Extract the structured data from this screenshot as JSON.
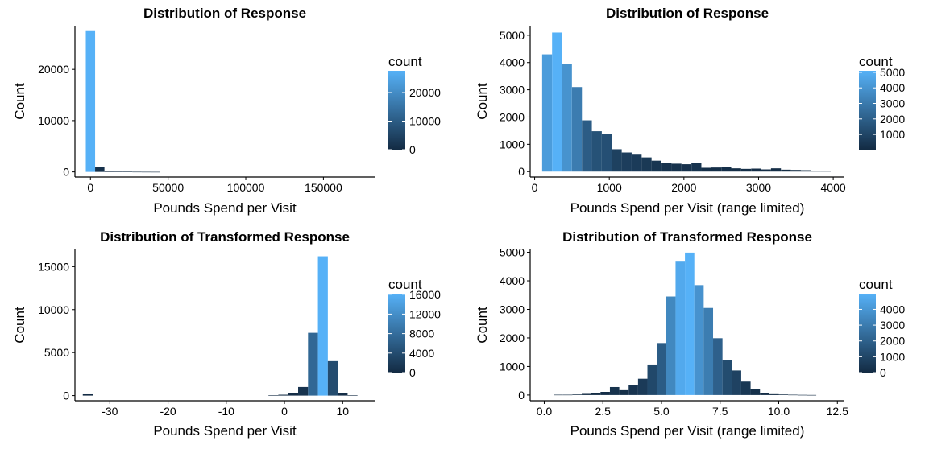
{
  "chart_data": [
    {
      "type": "bar",
      "title": "Distribution of Response",
      "xlabel": "Pounds Spend per Visit",
      "ylabel": "Count",
      "xlim": [
        -10000,
        183000
      ],
      "ylim": [
        -1000,
        28500
      ],
      "xticks": [
        0,
        50000,
        100000,
        150000
      ],
      "xtick_labels": [
        "0",
        "50000",
        "100000",
        "150000"
      ],
      "yticks": [
        0,
        10000,
        20000
      ],
      "ytick_labels": [
        "0",
        "10000",
        "20000"
      ],
      "bin_width": 6000,
      "bins": [
        {
          "x": 0,
          "count": 27600
        },
        {
          "x": 6000,
          "count": 1000
        },
        {
          "x": 12000,
          "count": 220
        },
        {
          "x": 18000,
          "count": 90
        },
        {
          "x": 24000,
          "count": 40
        },
        {
          "x": 30000,
          "count": 20
        },
        {
          "x": 36000,
          "count": 10
        },
        {
          "x": 42000,
          "count": 5
        }
      ],
      "legend": {
        "title": "count",
        "position": "right",
        "min": 0,
        "max": 27600,
        "ticks": [
          0,
          10000,
          20000
        ],
        "tick_labels": [
          "0",
          "10000",
          "20000"
        ]
      }
    },
    {
      "type": "bar",
      "title": "Distribution of Response",
      "xlabel": "Pounds Spend per Visit (range limited)",
      "ylabel": "Count",
      "xlim": [
        -60,
        4150
      ],
      "ylim": [
        -200,
        5350
      ],
      "xticks": [
        0,
        1000,
        2000,
        3000,
        4000
      ],
      "xtick_labels": [
        "0",
        "1000",
        "2000",
        "3000",
        "4000"
      ],
      "yticks": [
        0,
        1000,
        2000,
        3000,
        4000,
        5000
      ],
      "ytick_labels": [
        "0",
        "1000",
        "2000",
        "3000",
        "4000",
        "5000"
      ],
      "bin_width": 133,
      "bins": [
        {
          "x": 167,
          "count": 4300
        },
        {
          "x": 300,
          "count": 5100
        },
        {
          "x": 433,
          "count": 3950
        },
        {
          "x": 567,
          "count": 3100
        },
        {
          "x": 700,
          "count": 1880
        },
        {
          "x": 833,
          "count": 1480
        },
        {
          "x": 967,
          "count": 1380
        },
        {
          "x": 1100,
          "count": 820
        },
        {
          "x": 1233,
          "count": 700
        },
        {
          "x": 1367,
          "count": 620
        },
        {
          "x": 1500,
          "count": 520
        },
        {
          "x": 1633,
          "count": 400
        },
        {
          "x": 1767,
          "count": 320
        },
        {
          "x": 1900,
          "count": 290
        },
        {
          "x": 2033,
          "count": 270
        },
        {
          "x": 2167,
          "count": 330
        },
        {
          "x": 2300,
          "count": 140
        },
        {
          "x": 2433,
          "count": 150
        },
        {
          "x": 2567,
          "count": 170
        },
        {
          "x": 2700,
          "count": 120
        },
        {
          "x": 2833,
          "count": 100
        },
        {
          "x": 2967,
          "count": 110
        },
        {
          "x": 3100,
          "count": 80
        },
        {
          "x": 3233,
          "count": 120
        },
        {
          "x": 3367,
          "count": 70
        },
        {
          "x": 3500,
          "count": 60
        },
        {
          "x": 3633,
          "count": 50
        },
        {
          "x": 3767,
          "count": 30
        },
        {
          "x": 3900,
          "count": 20
        }
      ],
      "legend": {
        "title": "count",
        "position": "right",
        "min": 20,
        "max": 5100,
        "ticks": [
          1000,
          2000,
          3000,
          4000,
          5000
        ],
        "tick_labels": [
          "1000",
          "2000",
          "3000",
          "4000",
          "5000"
        ]
      }
    },
    {
      "type": "bar",
      "title": "Distribution of Transformed Response",
      "xlabel": "Pounds Spend per Visit",
      "ylabel": "Count",
      "xlim": [
        -36,
        15.5
      ],
      "ylim": [
        -600,
        17000
      ],
      "xticks": [
        -30,
        -20,
        -10,
        0,
        10
      ],
      "xtick_labels": [
        "-30",
        "-20",
        "-10",
        "0",
        "10"
      ],
      "yticks": [
        0,
        5000,
        10000,
        15000
      ],
      "ytick_labels": [
        "0",
        "5000",
        "10000",
        "15000"
      ],
      "bin_width": 1.7,
      "bins": [
        {
          "x": -33.8,
          "count": 150
        },
        {
          "x": -1.9,
          "count": 30
        },
        {
          "x": -0.2,
          "count": 100
        },
        {
          "x": 1.5,
          "count": 300
        },
        {
          "x": 3.2,
          "count": 1000
        },
        {
          "x": 4.9,
          "count": 7300
        },
        {
          "x": 6.6,
          "count": 16200
        },
        {
          "x": 8.3,
          "count": 4000
        },
        {
          "x": 10.0,
          "count": 250
        },
        {
          "x": 11.7,
          "count": 30
        }
      ],
      "legend": {
        "title": "count",
        "position": "right",
        "min": 0,
        "max": 16200,
        "ticks": [
          0,
          4000,
          8000,
          12000,
          16000
        ],
        "tick_labels": [
          "0",
          "4000",
          "8000",
          "12000",
          "16000"
        ]
      }
    },
    {
      "type": "bar",
      "title": "Distribution of Transformed Response",
      "xlabel": "Pounds Spend per Visit (range limited)",
      "ylabel": "Count",
      "xlim": [
        -0.6,
        12.8
      ],
      "ylim": [
        -200,
        5100
      ],
      "xticks": [
        0.0,
        2.5,
        5.0,
        7.5,
        10.0,
        12.5
      ],
      "xtick_labels": [
        "0.0",
        "2.5",
        "5.0",
        "7.5",
        "10.0",
        "12.5"
      ],
      "yticks": [
        0,
        1000,
        2000,
        3000,
        4000,
        5000
      ],
      "ytick_labels": [
        "0",
        "1000",
        "2000",
        "3000",
        "4000",
        "5000"
      ],
      "bin_width": 0.4,
      "bins": [
        {
          "x": 0.6,
          "count": 10
        },
        {
          "x": 1.0,
          "count": 10
        },
        {
          "x": 1.4,
          "count": 20
        },
        {
          "x": 1.8,
          "count": 40
        },
        {
          "x": 2.2,
          "count": 60
        },
        {
          "x": 2.6,
          "count": 110
        },
        {
          "x": 3.0,
          "count": 280
        },
        {
          "x": 3.4,
          "count": 170
        },
        {
          "x": 3.8,
          "count": 350
        },
        {
          "x": 4.2,
          "count": 570
        },
        {
          "x": 4.6,
          "count": 1070
        },
        {
          "x": 5.0,
          "count": 1820
        },
        {
          "x": 5.4,
          "count": 3450
        },
        {
          "x": 5.8,
          "count": 4700
        },
        {
          "x": 6.2,
          "count": 4990
        },
        {
          "x": 6.6,
          "count": 3850
        },
        {
          "x": 7.0,
          "count": 3050
        },
        {
          "x": 7.4,
          "count": 1990
        },
        {
          "x": 7.8,
          "count": 1220
        },
        {
          "x": 8.2,
          "count": 860
        },
        {
          "x": 8.6,
          "count": 470
        },
        {
          "x": 9.0,
          "count": 220
        },
        {
          "x": 9.4,
          "count": 80
        },
        {
          "x": 9.8,
          "count": 30
        },
        {
          "x": 10.2,
          "count": 20
        },
        {
          "x": 10.6,
          "count": 10
        },
        {
          "x": 11.0,
          "count": 5
        },
        {
          "x": 11.4,
          "count": 2
        }
      ],
      "legend": {
        "title": "count",
        "position": "right",
        "min": 0,
        "max": 4990,
        "ticks": [
          0,
          1000,
          2000,
          3000,
          4000
        ],
        "tick_labels": [
          "0",
          "1000",
          "2000",
          "3000",
          "4000"
        ]
      }
    }
  ],
  "colors": {
    "low": "#132b43",
    "high": "#56b1f7",
    "axis": "#000000",
    "background": "#ffffff"
  }
}
